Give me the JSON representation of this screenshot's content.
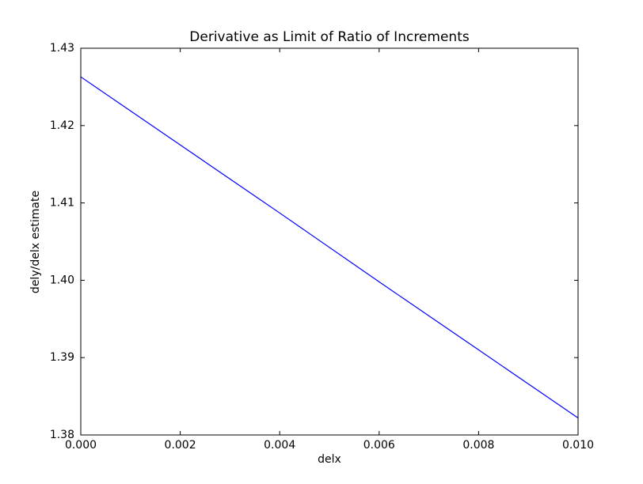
{
  "chart_data": {
    "type": "line",
    "title": "Derivative as Limit of Ratio of Increments",
    "x_label": "delx",
    "y_label": "dely/delx estimate",
    "x": [
      0,
      0.002,
      0.004,
      0.006,
      0.008,
      0.01
    ],
    "series": [
      {
        "color": "#0000ff",
        "values": [
          1.4263,
          1.4175,
          1.4087,
          1.3998,
          1.391,
          1.3822
        ]
      }
    ],
    "xlim": [
      0,
      0.01
    ],
    "xticks": [
      {
        "value": 0,
        "label": "0.000"
      },
      {
        "value": 0.002,
        "label": "0.002"
      },
      {
        "value": 0.004,
        "label": "0.004"
      },
      {
        "value": 0.006,
        "label": "0.006"
      },
      {
        "value": 0.008,
        "label": "0.008"
      },
      {
        "value": 0.01,
        "label": "0.010"
      }
    ],
    "ylim": [
      1.38,
      1.43
    ],
    "yticks": [
      1.38,
      1.39,
      {
        "value": 1.4,
        "label": "1.40"
      },
      1.41,
      1.42,
      1.43
    ],
    "grid": false
  }
}
